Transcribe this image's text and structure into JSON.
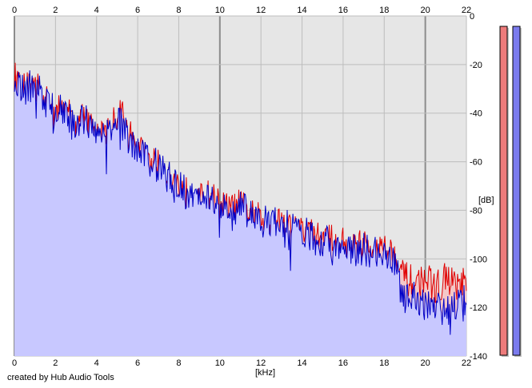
{
  "footer": {
    "credit": "created by Hub Audio Tools"
  },
  "chart_data": {
    "type": "area",
    "xlabel": "[kHz]",
    "ylabel": "[dB]",
    "xlim": [
      0,
      22
    ],
    "ylim": [
      -140,
      0
    ],
    "x_ticks": [
      0,
      2,
      4,
      6,
      8,
      10,
      12,
      14,
      16,
      18,
      20,
      22
    ],
    "y_ticks": [
      0,
      -20,
      -40,
      -60,
      -80,
      -100,
      -120,
      -140
    ],
    "grid": true,
    "x_tick_labels_top": true,
    "channel_colors": {
      "left": "#e00000",
      "right": "#0000c8",
      "left_fill": "#f4c8c8",
      "right_fill": "#c8c8ff",
      "background": "#e6e6e6"
    },
    "level_meters": [
      {
        "channel": "left",
        "fill_color": "#ee7b7b",
        "level_fraction": 1.0
      },
      {
        "channel": "right",
        "fill_color": "#7b7bee",
        "level_fraction": 1.0
      }
    ],
    "series": [
      {
        "channel": "left",
        "x": [
          0,
          0.5,
          1,
          1.5,
          2,
          2.5,
          3,
          3.5,
          4,
          4.5,
          5,
          5.2,
          5.5,
          6,
          6.5,
          7,
          7.5,
          8,
          8.5,
          9,
          9.5,
          10,
          10.5,
          11,
          11.5,
          12,
          12.5,
          13,
          13.5,
          14,
          14.5,
          15,
          15.5,
          16,
          16.5,
          17,
          17.5,
          18,
          18.5,
          18.8,
          19,
          19.5,
          20,
          20.5,
          21,
          21.5,
          22
        ],
        "y": [
          -25,
          -30,
          -28,
          -35,
          -40,
          -38,
          -45,
          -42,
          -50,
          -48,
          -42,
          -38,
          -48,
          -55,
          -58,
          -62,
          -66,
          -70,
          -74,
          -76,
          -74,
          -78,
          -80,
          -78,
          -82,
          -84,
          -86,
          -84,
          -88,
          -89,
          -90,
          -92,
          -93,
          -94,
          -95,
          -95,
          -96,
          -96,
          -98,
          -104,
          -108,
          -110,
          -108,
          -112,
          -108,
          -110,
          -111
        ]
      },
      {
        "channel": "right",
        "x": [
          0,
          0.5,
          1,
          1.5,
          2,
          2.5,
          3,
          3.5,
          4,
          4.5,
          5,
          5.2,
          5.5,
          6,
          6.5,
          7,
          7.5,
          8,
          8.5,
          9,
          9.5,
          10,
          10.5,
          11,
          11.5,
          12,
          12.5,
          13,
          13.5,
          14,
          14.5,
          15,
          15.5,
          16,
          16.5,
          17,
          17.5,
          18,
          18.5,
          18.8,
          19,
          19.5,
          20,
          20.5,
          21,
          21.5,
          22
        ],
        "y": [
          -25,
          -30,
          -28,
          -35,
          -40,
          -38,
          -45,
          -42,
          -50,
          -48,
          -42,
          -38,
          -48,
          -55,
          -58,
          -62,
          -66,
          -70,
          -74,
          -76,
          -74,
          -78,
          -80,
          -78,
          -82,
          -84,
          -86,
          -84,
          -88,
          -89,
          -91,
          -93,
          -94,
          -95,
          -96,
          -96,
          -97,
          -97,
          -100,
          -112,
          -118,
          -116,
          -120,
          -117,
          -121,
          -118,
          -117
        ]
      }
    ]
  }
}
